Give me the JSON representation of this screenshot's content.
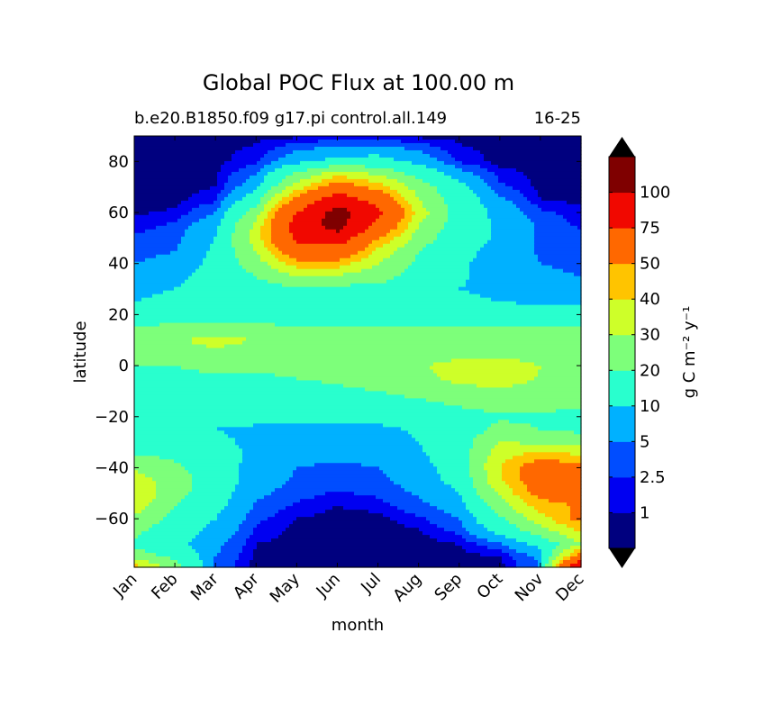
{
  "chart_data": {
    "type": "contourf",
    "title": "Global POC Flux at 100.00 m",
    "subtitle_left": "b.e20.B1850.f09 g17.pi control.all.149",
    "subtitle_right": "16-25",
    "xlabel": "month",
    "ylabel": "latitude",
    "x_categories": [
      "Jan",
      "Feb",
      "Mar",
      "Apr",
      "May",
      "Jun",
      "Jul",
      "Aug",
      "Sep",
      "Oct",
      "Nov",
      "Dec"
    ],
    "ylim": [
      -79,
      90
    ],
    "yticks": [
      80,
      60,
      40,
      20,
      0,
      -20,
      -40,
      -60
    ],
    "ytick_labels": [
      "80",
      "60",
      "40",
      "20",
      "0",
      "−20",
      "−40",
      "−60"
    ],
    "colorbar": {
      "label": "g C m⁻² y⁻¹",
      "levels": [
        1,
        2.5,
        5,
        10,
        20,
        30,
        40,
        50,
        75,
        100
      ],
      "tick_labels": [
        "1",
        "2.5",
        "5",
        "10",
        "20",
        "30",
        "40",
        "50",
        "75",
        "100"
      ],
      "colors": [
        "#00007f",
        "#0000f1",
        "#004dff",
        "#00b1ff",
        "#29ffce",
        "#7dff7a",
        "#ceff29",
        "#ffc400",
        "#ff6800",
        "#f10800",
        "#7f0000"
      ],
      "extend": "both"
    },
    "months": [
      1,
      2,
      3,
      4,
      5,
      6,
      7,
      8,
      9,
      10,
      11,
      12
    ],
    "latitudes": [
      90,
      80,
      70,
      65,
      60,
      55,
      50,
      45,
      40,
      35,
      30,
      25,
      20,
      15,
      10,
      5,
      0,
      -5,
      -10,
      -15,
      -20,
      -25,
      -30,
      -35,
      -40,
      -45,
      -50,
      -55,
      -60,
      -65,
      -70,
      -75,
      -79
    ],
    "values": [
      [
        0.5,
        0.5,
        0.5,
        0.5,
        0.5,
        0.5,
        0.5,
        0.5,
        0.5,
        0.5,
        0.5,
        0.5
      ],
      [
        0.5,
        0.5,
        0.5,
        2.0,
        8,
        12,
        13,
        8,
        2.0,
        0.5,
        0.5,
        0.5
      ],
      [
        0.5,
        0.5,
        1.0,
        8,
        35,
        60,
        45,
        25,
        12,
        3.0,
        0.5,
        0.5
      ],
      [
        0.5,
        0.6,
        2.0,
        15,
        55,
        90,
        65,
        30,
        14,
        6,
        1.0,
        0.6
      ],
      [
        0.8,
        1.2,
        5,
        25,
        75,
        110,
        80,
        35,
        15,
        8,
        3.0,
        1.5
      ],
      [
        1.5,
        3.0,
        8,
        32,
        85,
        110,
        70,
        30,
        14,
        9,
        4.5,
        2.0
      ],
      [
        3.0,
        4.0,
        10,
        35,
        80,
        90,
        50,
        25,
        13,
        9,
        4.5,
        3.5
      ],
      [
        4.0,
        5.0,
        11,
        30,
        65,
        65,
        38,
        20,
        12,
        8,
        4.5,
        4.0
      ],
      [
        5.0,
        6.0,
        12,
        25,
        45,
        45,
        30,
        18,
        11,
        7,
        5.0,
        4.5
      ],
      [
        6.0,
        8.0,
        14,
        20,
        30,
        28,
        24,
        15,
        11,
        7,
        5.5,
        5.0
      ],
      [
        8,
        10,
        13,
        16,
        18,
        17,
        17,
        14,
        10,
        8,
        6.0,
        6.0
      ],
      [
        10,
        12,
        14,
        15,
        15,
        15,
        15,
        14,
        12,
        10,
        9,
        9
      ],
      [
        14,
        16,
        17,
        18,
        18,
        18,
        18,
        17,
        16,
        15,
        13,
        12
      ],
      [
        20,
        22,
        22,
        21,
        20,
        20,
        20,
        20,
        20,
        20,
        20,
        20
      ],
      [
        24,
        29,
        33,
        30,
        24,
        22,
        21,
        21,
        22,
        22,
        22,
        22
      ],
      [
        22,
        26,
        28,
        25,
        22,
        21,
        21,
        22,
        24,
        25,
        20,
        20
      ],
      [
        20,
        20,
        22,
        22,
        21,
        21,
        22,
        28,
        36,
        40,
        30,
        28
      ],
      [
        18,
        18,
        19,
        19,
        20,
        21,
        22,
        27,
        33,
        36,
        29,
        27
      ],
      [
        15,
        16,
        17,
        17,
        18,
        19,
        20,
        23,
        26,
        28,
        26,
        25
      ],
      [
        12,
        13,
        13,
        14,
        14,
        15,
        16,
        18,
        21,
        23,
        22,
        21
      ],
      [
        10,
        11,
        11,
        12,
        12,
        12,
        12,
        14,
        17,
        19,
        19,
        18
      ],
      [
        12,
        12,
        10,
        9.0,
        8.5,
        8.0,
        8.5,
        11,
        15,
        22,
        20,
        18
      ],
      [
        15,
        15,
        11,
        9.0,
        7,
        6.5,
        7,
        10,
        15,
        30,
        28,
        25
      ],
      [
        20,
        18,
        12,
        9.0,
        6,
        5.5,
        6,
        9.0,
        14,
        36,
        45,
        40
      ],
      [
        28,
        22,
        13,
        8,
        5.0,
        4.5,
        5.0,
        8,
        13,
        40,
        60,
        55
      ],
      [
        35,
        25,
        14,
        7,
        4.5,
        3.5,
        4.0,
        7,
        12,
        38,
        62,
        58
      ],
      [
        38,
        24,
        13,
        6,
        3.5,
        2.2,
        3.0,
        5.5,
        10,
        32,
        55,
        55
      ],
      [
        35,
        20,
        12,
        4.5,
        2.0,
        1.0,
        1.5,
        4.0,
        7,
        25,
        45,
        52
      ],
      [
        28,
        16,
        10,
        3.0,
        1.0,
        0.5,
        0.5,
        2.0,
        5,
        18,
        35,
        55
      ],
      [
        22,
        14,
        8,
        2.0,
        0.5,
        0.4,
        0.4,
        0.8,
        3.0,
        12,
        25,
        40
      ],
      [
        18,
        12,
        6,
        1.0,
        0.4,
        0.3,
        0.3,
        0.4,
        1.0,
        4.0,
        12,
        30
      ],
      [
        25,
        18,
        5,
        0.5,
        0.3,
        0.3,
        0.3,
        0.3,
        0.4,
        0.8,
        6,
        60
      ],
      [
        45,
        25,
        4.0,
        0.4,
        0.3,
        0.3,
        0.3,
        0.3,
        0.3,
        0.4,
        5.0,
        110
      ]
    ]
  }
}
